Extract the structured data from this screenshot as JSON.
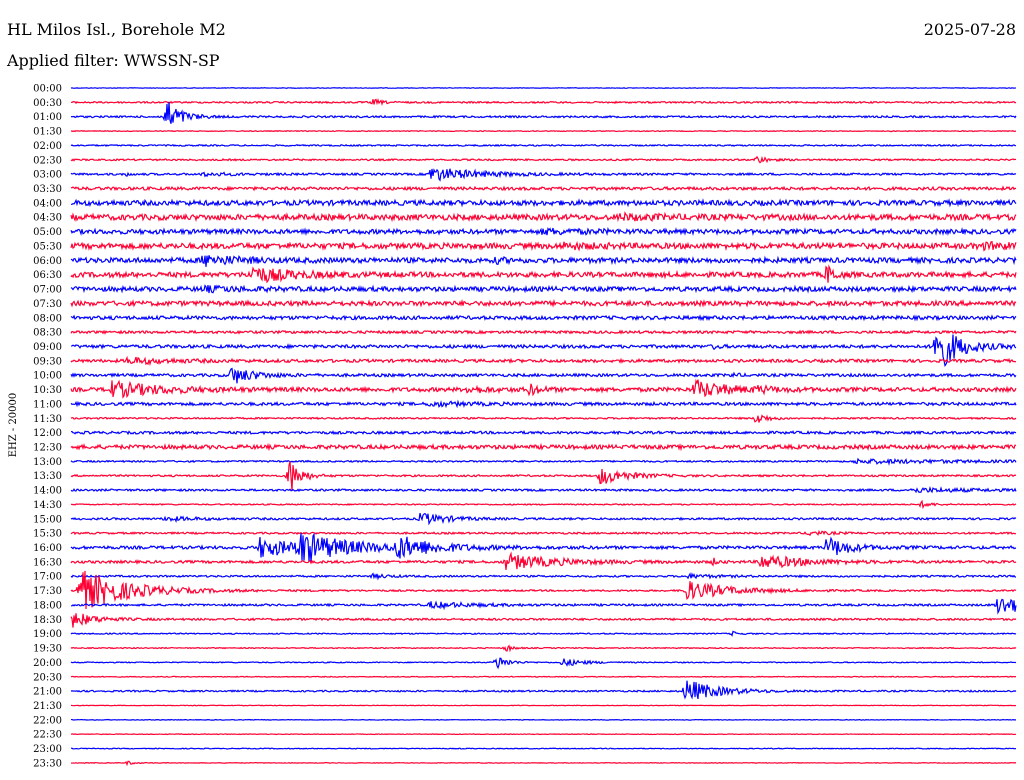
{
  "header": {
    "station": "HL Milos Isl., Borehole M2",
    "date": "2025-07-28",
    "filter": "Applied filter: WWSSN-SP"
  },
  "chart_data": {
    "type": "line",
    "title": "HL Milos Isl., Borehole M2",
    "date": "2025-07-28",
    "ylabel": "EHZ - 20000",
    "colors": [
      "#0000ff",
      "#ff0033"
    ],
    "rows": [
      "00:00",
      "00:30",
      "01:00",
      "01:30",
      "02:00",
      "02:30",
      "03:00",
      "03:30",
      "04:00",
      "04:30",
      "05:00",
      "05:30",
      "06:00",
      "06:30",
      "07:00",
      "07:30",
      "08:00",
      "08:30",
      "09:00",
      "09:30",
      "10:00",
      "10:30",
      "11:00",
      "11:30",
      "12:00",
      "12:30",
      "13:00",
      "13:30",
      "14:00",
      "14:30",
      "15:00",
      "15:30",
      "16:00",
      "16:30",
      "17:00",
      "17:30",
      "18:00",
      "18:30",
      "19:00",
      "19:30",
      "20:00",
      "20:30",
      "21:00",
      "21:30",
      "22:00",
      "22:30",
      "23:00",
      "23:30"
    ],
    "noise": [
      0.3,
      0.8,
      0.9,
      0.4,
      0.7,
      0.8,
      1.0,
      1.5,
      2.5,
      2.8,
      2.3,
      2.8,
      2.5,
      2.5,
      2.3,
      2.3,
      1.8,
      1.3,
      1.6,
      1.5,
      1.4,
      2.0,
      1.5,
      0.8,
      1.3,
      2.0,
      0.8,
      0.9,
      1.0,
      0.6,
      1.0,
      0.9,
      1.5,
      1.3,
      0.9,
      0.8,
      1.0,
      1.0,
      0.6,
      0.5,
      0.5,
      0.4,
      0.8,
      0.3,
      0.3,
      0.3,
      0.4,
      0.3
    ],
    "events": [
      [],
      [
        [
          0.32,
          3,
          8
        ]
      ],
      [
        [
          0.1,
          18,
          14
        ]
      ],
      [],
      [],
      [
        [
          0.725,
          4,
          10
        ]
      ],
      [
        [
          0.38,
          7,
          45
        ],
        [
          0.06,
          2,
          2
        ],
        [
          0.14,
          1.5,
          30
        ]
      ],
      [],
      [],
      [
        [
          0.58,
          2,
          45
        ]
      ],
      [
        [
          0.5,
          2,
          40
        ]
      ],
      [
        [
          0.52,
          2,
          30
        ],
        [
          0.96,
          2,
          60
        ]
      ],
      [
        [
          0.14,
          5,
          30
        ],
        [
          0.45,
          2,
          10
        ]
      ],
      [
        [
          0.19,
          8,
          35
        ],
        [
          0.8,
          10,
          7
        ]
      ],
      [
        [
          0.14,
          2,
          40
        ]
      ],
      [],
      [],
      [],
      [
        [
          0.915,
          28,
          20
        ],
        [
          0.68,
          2,
          5
        ]
      ],
      [
        [
          0.06,
          3,
          40
        ]
      ],
      [
        [
          0.17,
          9,
          20
        ],
        [
          0.7,
          2,
          5
        ]
      ],
      [
        [
          0.04,
          8,
          45
        ],
        [
          0.42,
          3,
          20
        ],
        [
          0.485,
          5,
          10
        ],
        [
          0.66,
          9,
          30
        ],
        [
          0.725,
          2,
          20
        ]
      ],
      [
        [
          0.38,
          2,
          35
        ]
      ],
      [
        [
          0.725,
          6,
          10
        ]
      ],
      [],
      [],
      [
        [
          0.83,
          2,
          120
        ]
      ],
      [
        [
          0.23,
          22,
          10
        ],
        [
          0.56,
          9,
          25
        ]
      ],
      [
        [
          0.89,
          2,
          65
        ]
      ],
      [
        [
          0.9,
          3,
          10
        ]
      ],
      [
        [
          0.37,
          6,
          25
        ],
        [
          0.1,
          2,
          30
        ]
      ],
      [
        [
          0.78,
          2,
          20
        ]
      ],
      [
        [
          0.2,
          10,
          35
        ],
        [
          0.24,
          14,
          50
        ],
        [
          0.345,
          10,
          35
        ],
        [
          0.8,
          11,
          20
        ]
      ],
      [
        [
          0.46,
          8,
          45
        ],
        [
          0.73,
          7,
          40
        ],
        [
          0.68,
          3,
          4
        ]
      ],
      [
        [
          0.65,
          2,
          30
        ],
        [
          0.32,
          2,
          15
        ]
      ],
      [
        [
          0.008,
          22,
          45
        ],
        [
          0.65,
          10,
          40
        ]
      ],
      [
        [
          0.38,
          3,
          40
        ],
        [
          0.98,
          9,
          40
        ]
      ],
      [
        [
          0.002,
          8,
          20
        ]
      ],
      [
        [
          0.7,
          2,
          6
        ]
      ],
      [
        [
          0.46,
          4,
          6
        ]
      ],
      [
        [
          0.45,
          8,
          10
        ],
        [
          0.52,
          4,
          20
        ]
      ],
      [],
      [
        [
          0.65,
          12,
          30
        ]
      ],
      [],
      [],
      [],
      [],
      [
        [
          0.06,
          2,
          6
        ]
      ]
    ]
  }
}
